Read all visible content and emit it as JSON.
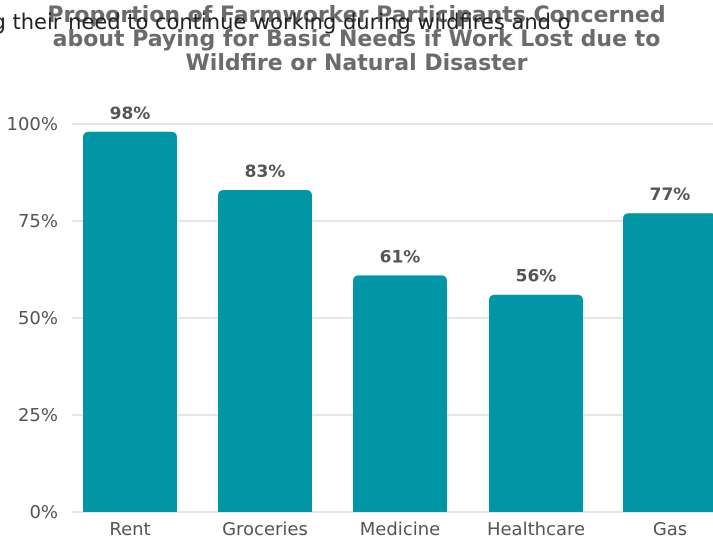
{
  "overlay_text": "ding their need to continue working during wildfires and o",
  "chart_data": {
    "type": "bar",
    "title_lines": [
      "Proportion of Farmworker Participants Concerned",
      "about Paying for Basic Needs if Work Lost due to",
      "Wildfire or Natural Disaster"
    ],
    "categories": [
      "Rent",
      "Groceries",
      "Medicine",
      "Healthcare",
      "Gas"
    ],
    "values": [
      98,
      83,
      61,
      56,
      77
    ],
    "data_labels": [
      "98%",
      "83%",
      "61%",
      "56%",
      "77%"
    ],
    "y_ticks": [
      0,
      25,
      50,
      75,
      100
    ],
    "y_tick_labels": [
      "0%",
      "25%",
      "50%",
      "75%",
      "100%"
    ],
    "ylim": [
      0,
      100
    ],
    "grid": true,
    "bar_color": "#0096a6",
    "grid_color": "#cccccc"
  }
}
